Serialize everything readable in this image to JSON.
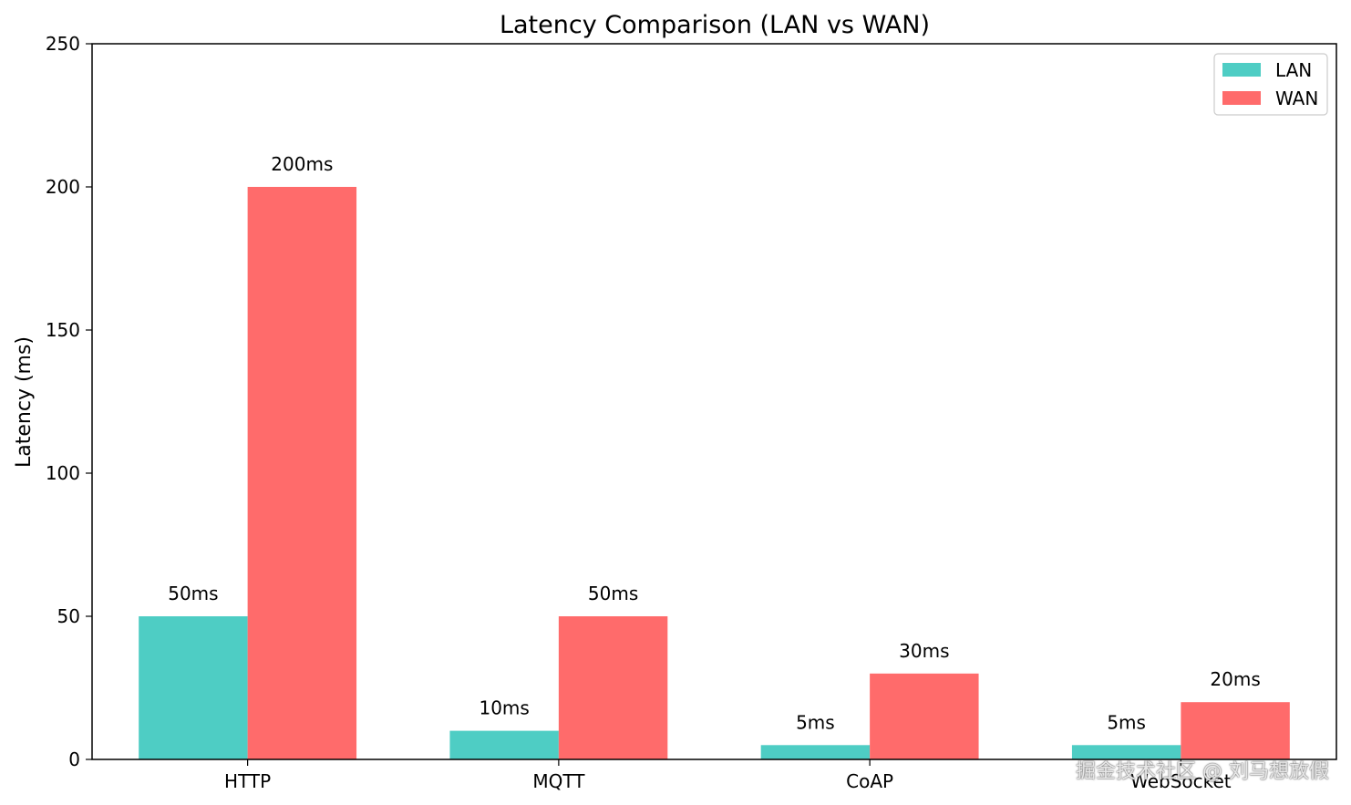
{
  "chart_data": {
    "type": "bar",
    "title": "Latency Comparison (LAN vs WAN)",
    "xlabel": "",
    "ylabel": "Latency (ms)",
    "ylim": [
      0,
      250
    ],
    "yticks": [
      0,
      50,
      100,
      150,
      200,
      250
    ],
    "categories": [
      "HTTP",
      "MQTT",
      "CoAP",
      "WebSocket"
    ],
    "series": [
      {
        "name": "LAN",
        "color": "#4ECDC4",
        "values": [
          50,
          10,
          5,
          5
        ],
        "labels": [
          "50ms",
          "10ms",
          "5ms",
          "5ms"
        ]
      },
      {
        "name": "WAN",
        "color": "#FF6B6B",
        "values": [
          200,
          50,
          30,
          20
        ],
        "labels": [
          "200ms",
          "50ms",
          "30ms",
          "20ms"
        ]
      }
    ],
    "legend": "top-right",
    "grid": false
  },
  "watermark": "掘金技术社区 @ 刘马想放假"
}
